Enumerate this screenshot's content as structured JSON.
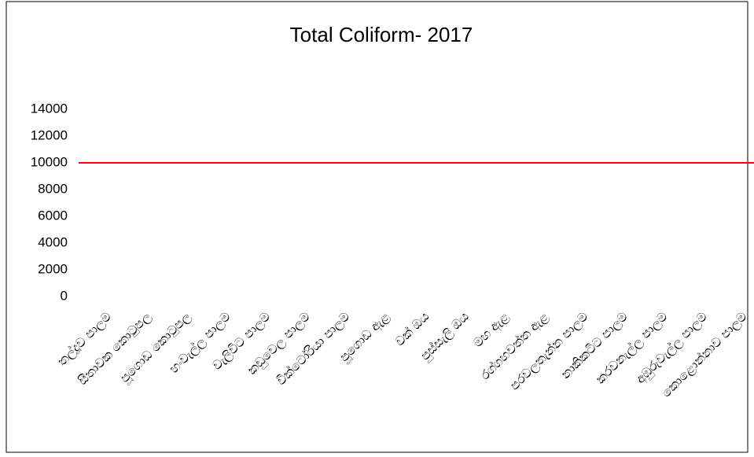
{
  "chart_data": {
    "type": "bar",
    "title": "Total Coliform- 2017",
    "categories": [
      "තල්දූව පාලම",
      "සීතාවක කොටුපල",
      "පූගොඩ කොටුපල",
      "හංවැල්ල පාලම",
      "වැලිවිට පාලම",
      "කඩුවෙල පාලම",
      "වික්ටෝරියා පාලම",
      "පූගොඩ ඇළ",
      "වක් ඔය",
      "පුස්සැලි ඔය",
      "මහ ඇළ",
      "රග්ගහවත්ත ඇළ",
      "පරවලතැන්න පාලම",
      "නාකිකටිට පාලම",
      "කරවනැල්ල පාලම",
      "අඹුරුවැල්ල පාලම",
      "කොළොන්නාව පාලම"
    ],
    "values": [
      null,
      null,
      null,
      null,
      null,
      null,
      null,
      null,
      null,
      null,
      null,
      null,
      null,
      null,
      null,
      null,
      null
    ],
    "color": "#4472c4",
    "ylim": [
      0,
      14000
    ],
    "yticks": [
      0,
      2000,
      4000,
      6000,
      8000,
      10000,
      12000,
      14000
    ],
    "grid": false,
    "reference_line": {
      "value": 10000,
      "color": "#ff0000"
    }
  }
}
